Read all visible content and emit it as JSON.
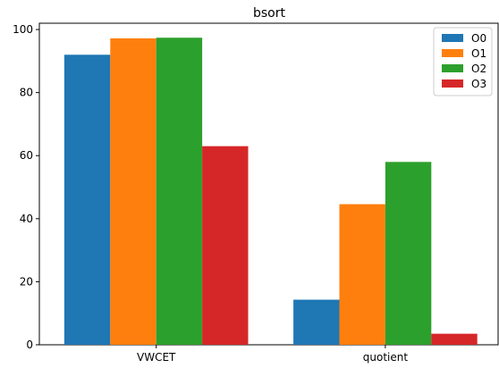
{
  "chart_data": {
    "type": "bar",
    "title": "bsort",
    "xlabel": "",
    "ylabel": "",
    "categories": [
      "VWCET",
      "quotient"
    ],
    "ylim": [
      0,
      102
    ],
    "yticks": [
      0,
      20,
      40,
      60,
      80,
      100
    ],
    "legend_position": "top-right",
    "series": [
      {
        "name": "O0",
        "color": "#1f77b4",
        "values": [
          92.0,
          14.3
        ]
      },
      {
        "name": "O1",
        "color": "#ff7f0e",
        "values": [
          97.2,
          44.6
        ]
      },
      {
        "name": "O2",
        "color": "#2ca02c",
        "values": [
          97.4,
          58.0
        ]
      },
      {
        "name": "O3",
        "color": "#d62728",
        "values": [
          63.0,
          3.5
        ]
      }
    ]
  }
}
